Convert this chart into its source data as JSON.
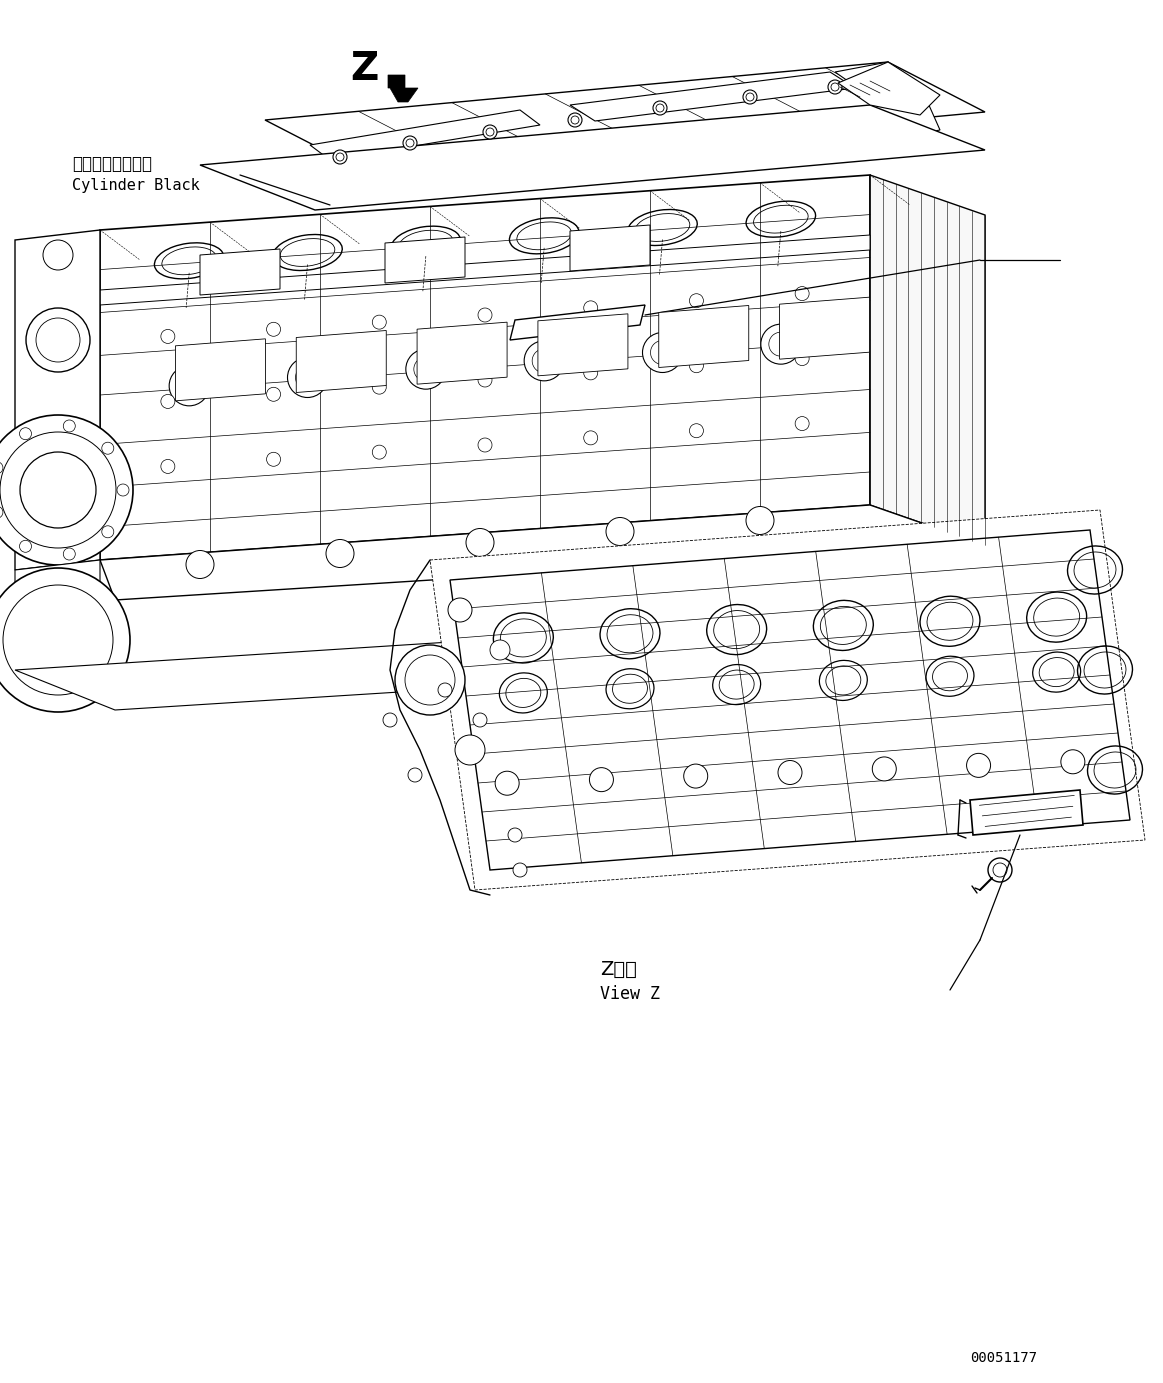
{
  "background_color": "#ffffff",
  "line_color": "#000000",
  "text_color": "#000000",
  "diagram_id": "00051177",
  "label_cylinder_jp": "シリンダブロック",
  "label_cylinder_en": "Cylinder Black",
  "label_z": "Z",
  "label_view_z_jp": "Z　視",
  "label_view_z_en": "View Z",
  "figsize": [
    11.63,
    13.83
  ],
  "dpi": 100
}
